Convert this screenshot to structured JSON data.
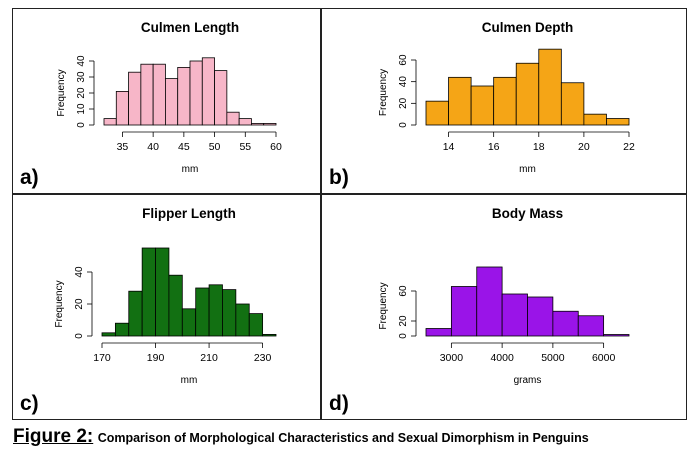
{
  "caption": {
    "label": "Figure 2:",
    "text": "Comparison of Morphological Characteristics and Sexual Dimorphism in Penguins"
  },
  "chart_data": [
    {
      "type": "bar",
      "panel_label": "a)",
      "title": "Culmen Length",
      "xlabel": "mm",
      "ylabel": "Frequency",
      "color": "#f7b6c8",
      "bin_start": 32,
      "bin_width": 2,
      "values": [
        4,
        21,
        33,
        38,
        38,
        29,
        36,
        40,
        42,
        34,
        8,
        4,
        1,
        1
      ],
      "xlim": [
        32,
        60
      ],
      "ylim": [
        0,
        40
      ],
      "xticks": [
        35,
        40,
        45,
        50,
        55,
        60
      ],
      "yticks": [
        0,
        10,
        20,
        30,
        40
      ]
    },
    {
      "type": "bar",
      "panel_label": "b)",
      "title": "Culmen Depth",
      "xlabel": "mm",
      "ylabel": "Frequency",
      "color": "#f5a516",
      "bin_start": 13,
      "bin_width": 1,
      "values": [
        22,
        44,
        36,
        44,
        57,
        70,
        39,
        10,
        6
      ],
      "xlim": [
        13,
        22
      ],
      "ylim": [
        0,
        60
      ],
      "xticks": [
        14,
        16,
        18,
        20,
        22
      ],
      "yticks": [
        0,
        20,
        40,
        60
      ]
    },
    {
      "type": "bar",
      "panel_label": "c)",
      "title": "Flipper Length",
      "xlabel": "mm",
      "ylabel": "Frequency",
      "color": "#127012",
      "bin_start": 170,
      "bin_width": 5,
      "values": [
        2,
        8,
        28,
        55,
        55,
        38,
        17,
        30,
        32,
        29,
        20,
        14,
        1
      ],
      "xlim": [
        170,
        235
      ],
      "ylim": [
        0,
        40
      ],
      "xticks": [
        170,
        190,
        210,
        230
      ],
      "yticks": [
        0,
        20,
        40
      ]
    },
    {
      "type": "bar",
      "panel_label": "d)",
      "title": "Body Mass",
      "xlabel": "grams",
      "ylabel": "Frequency",
      "color": "#9a14e8",
      "bin_start": 2500,
      "bin_width": 500,
      "values": [
        10,
        66,
        92,
        56,
        52,
        33,
        27,
        2
      ],
      "xlim": [
        2500,
        6500
      ],
      "ylim": [
        0,
        80
      ],
      "xticks": [
        3000,
        4000,
        5000,
        6000
      ],
      "yticks": [
        0,
        20,
        60
      ]
    }
  ]
}
